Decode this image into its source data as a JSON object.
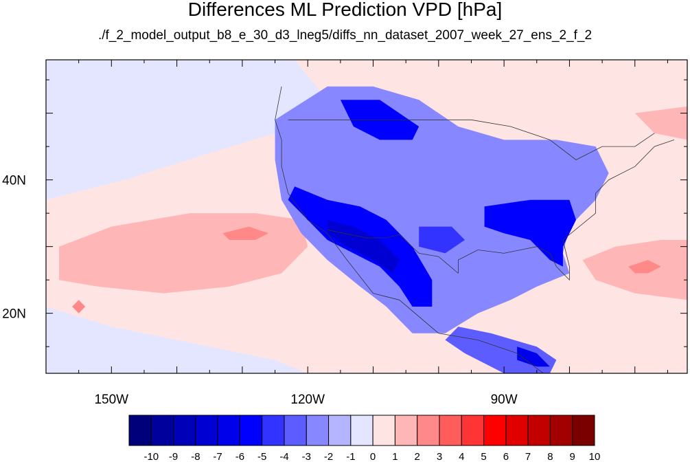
{
  "title": "Differences ML Prediction VPD [hPa]",
  "subtitle": "./f_2_model_output_b8_e_30_d3_lneg5/diffs_nn_dataset_2007_week_27_ens_2_f_2",
  "map": {
    "lon_range": [
      -160,
      -62
    ],
    "lat_range": [
      11,
      58
    ],
    "lon_labels": [
      {
        "value": -150,
        "label": "150W"
      },
      {
        "value": -120,
        "label": "120W"
      },
      {
        "value": -90,
        "label": "90W"
      }
    ],
    "lat_labels": [
      {
        "value": 40,
        "label": "40N"
      },
      {
        "value": 20,
        "label": "20N"
      }
    ]
  },
  "colorbar": {
    "labels": [
      "-10",
      "-9",
      "-8",
      "-7",
      "-6",
      "-5",
      "-4",
      "-3",
      "-2",
      "-1",
      "0",
      "1",
      "2",
      "3",
      "4",
      "5",
      "6",
      "7",
      "8",
      "9",
      "10"
    ],
    "colors": [
      "#00007a",
      "#00009c",
      "#0000b8",
      "#0000d2",
      "#0000ea",
      "#0000ff",
      "#3333ff",
      "#5d5dff",
      "#8787ff",
      "#b4b4ff",
      "#e4e6ff",
      "#ffe4e4",
      "#ffb6b6",
      "#ff8888",
      "#ff5c5c",
      "#ff3434",
      "#ff0000",
      "#e00000",
      "#c20000",
      "#a20000",
      "#7a0000"
    ]
  },
  "chart_data": {
    "type": "heatmap",
    "title": "Differences ML Prediction VPD [hPa]",
    "subtitle": "./f_2_model_output_b8_e_30_d3_lneg5/diffs_nn_dataset_2007_week_27_ens_2_f_2",
    "xlabel": "",
    "ylabel": "",
    "xlim": [
      -160,
      -62
    ],
    "ylim": [
      11,
      58
    ],
    "levels": [
      -10,
      -9,
      -8,
      -7,
      -6,
      -5,
      -4,
      -3,
      -2,
      -1,
      0,
      1,
      2,
      3,
      4,
      5,
      6,
      7,
      8,
      9,
      10
    ],
    "background_level": 0.5,
    "regions": [
      {
        "name": "Western ocean (light blue)",
        "value": -0.5,
        "points": [
          [
            -160,
            58
          ],
          [
            -122,
            58
          ],
          [
            -117,
            52
          ],
          [
            -120,
            48
          ],
          [
            -125,
            47
          ],
          [
            -135,
            44
          ],
          [
            -148,
            40
          ],
          [
            -160,
            37
          ]
        ]
      },
      {
        "name": "Southern ocean (light blue)",
        "value": -0.5,
        "points": [
          [
            -160,
            21
          ],
          [
            -150,
            18
          ],
          [
            -135,
            15
          ],
          [
            -125,
            13
          ],
          [
            -120,
            11
          ],
          [
            -160,
            11
          ]
        ]
      },
      {
        "name": "Pacific positive region",
        "value": 1.5,
        "points": [
          [
            -158,
            30
          ],
          [
            -150,
            33
          ],
          [
            -138,
            35
          ],
          [
            -128,
            35
          ],
          [
            -121,
            34
          ],
          [
            -120,
            30
          ],
          [
            -124,
            26
          ],
          [
            -132,
            24
          ],
          [
            -142,
            23
          ],
          [
            -152,
            24
          ],
          [
            -158,
            25
          ]
        ]
      },
      {
        "name": "Pacific positive core",
        "value": 2.5,
        "points": [
          [
            -133,
            32
          ],
          [
            -129,
            33
          ],
          [
            -126,
            32
          ],
          [
            -128,
            31
          ],
          [
            -132,
            31
          ]
        ]
      },
      {
        "name": "Hawaii positive",
        "value": 2.5,
        "points": [
          [
            -156,
            21
          ],
          [
            -155,
            22
          ],
          [
            -154,
            21
          ],
          [
            -155,
            20
          ]
        ]
      },
      {
        "name": "Atlantic positive",
        "value": 1.5,
        "points": [
          [
            -78,
            28
          ],
          [
            -73,
            30
          ],
          [
            -66,
            31
          ],
          [
            -62,
            31
          ],
          [
            -62,
            22
          ],
          [
            -70,
            23
          ],
          [
            -76,
            25
          ]
        ]
      },
      {
        "name": "Atlantic positive core",
        "value": 2.5,
        "points": [
          [
            -71,
            27
          ],
          [
            -68,
            28
          ],
          [
            -66,
            27
          ],
          [
            -68,
            26
          ],
          [
            -70,
            26
          ]
        ]
      },
      {
        "name": "Northeast Atlantic positive",
        "value": 1.5,
        "points": [
          [
            -70,
            50
          ],
          [
            -62,
            51
          ],
          [
            -62,
            46
          ],
          [
            -67,
            47
          ]
        ]
      },
      {
        "name": "US negative region",
        "value": -2.5,
        "points": [
          [
            -125,
            49
          ],
          [
            -117,
            54
          ],
          [
            -110,
            54
          ],
          [
            -103,
            52
          ],
          [
            -97,
            48
          ],
          [
            -90,
            46
          ],
          [
            -82,
            46
          ],
          [
            -76,
            45
          ],
          [
            -74,
            41
          ],
          [
            -76,
            37
          ],
          [
            -80,
            33
          ],
          [
            -81,
            29
          ],
          [
            -80,
            26
          ],
          [
            -85,
            24
          ],
          [
            -89,
            22
          ],
          [
            -94,
            20
          ],
          [
            -99,
            17
          ],
          [
            -104,
            17
          ],
          [
            -108,
            21
          ],
          [
            -112,
            24
          ],
          [
            -117,
            28
          ],
          [
            -121,
            32
          ],
          [
            -124,
            37
          ],
          [
            -125,
            43
          ]
        ]
      },
      {
        "name": "Central America negative",
        "value": -3.5,
        "points": [
          [
            -97,
            18
          ],
          [
            -92,
            17
          ],
          [
            -85,
            15
          ],
          [
            -82,
            13
          ],
          [
            -83,
            11
          ],
          [
            -90,
            11
          ],
          [
            -96,
            14
          ],
          [
            -99,
            16
          ]
        ]
      },
      {
        "name": "Southwest strong negative",
        "value": -5.5,
        "points": [
          [
            -122,
            39
          ],
          [
            -117,
            37
          ],
          [
            -112,
            36
          ],
          [
            -108,
            34
          ],
          [
            -104,
            30
          ],
          [
            -101,
            25
          ],
          [
            -101,
            21
          ],
          [
            -104,
            21
          ],
          [
            -106,
            24
          ],
          [
            -109,
            27
          ],
          [
            -113,
            29
          ],
          [
            -117,
            31
          ],
          [
            -121,
            35
          ],
          [
            -123,
            37
          ]
        ]
      },
      {
        "name": "Southwest core",
        "value": -7.5,
        "points": [
          [
            -117,
            34
          ],
          [
            -113,
            33
          ],
          [
            -109,
            31
          ],
          [
            -106,
            28
          ],
          [
            -107,
            26
          ],
          [
            -110,
            28
          ],
          [
            -114,
            30
          ],
          [
            -117,
            32
          ]
        ]
      },
      {
        "name": "Southeast strong negative",
        "value": -5.5,
        "points": [
          [
            -93,
            36
          ],
          [
            -86,
            37
          ],
          [
            -80,
            37
          ],
          [
            -79,
            34
          ],
          [
            -81,
            30
          ],
          [
            -81,
            27
          ],
          [
            -83,
            28
          ],
          [
            -86,
            31
          ],
          [
            -90,
            32
          ],
          [
            -93,
            33
          ]
        ]
      },
      {
        "name": "Northern Plains negative",
        "value": -5.5,
        "points": [
          [
            -115,
            52
          ],
          [
            -109,
            52
          ],
          [
            -103,
            48
          ],
          [
            -104,
            46
          ],
          [
            -109,
            46
          ],
          [
            -113,
            48
          ]
        ]
      },
      {
        "name": "Texas negative",
        "value": -4.5,
        "points": [
          [
            -103,
            33
          ],
          [
            -98,
            33
          ],
          [
            -96,
            31
          ],
          [
            -99,
            29
          ],
          [
            -103,
            30
          ]
        ]
      },
      {
        "name": "Central America core",
        "value": -6.5,
        "points": [
          [
            -88,
            15
          ],
          [
            -85,
            14
          ],
          [
            -83,
            12
          ],
          [
            -85,
            12
          ],
          [
            -88,
            13
          ]
        ]
      }
    ]
  }
}
